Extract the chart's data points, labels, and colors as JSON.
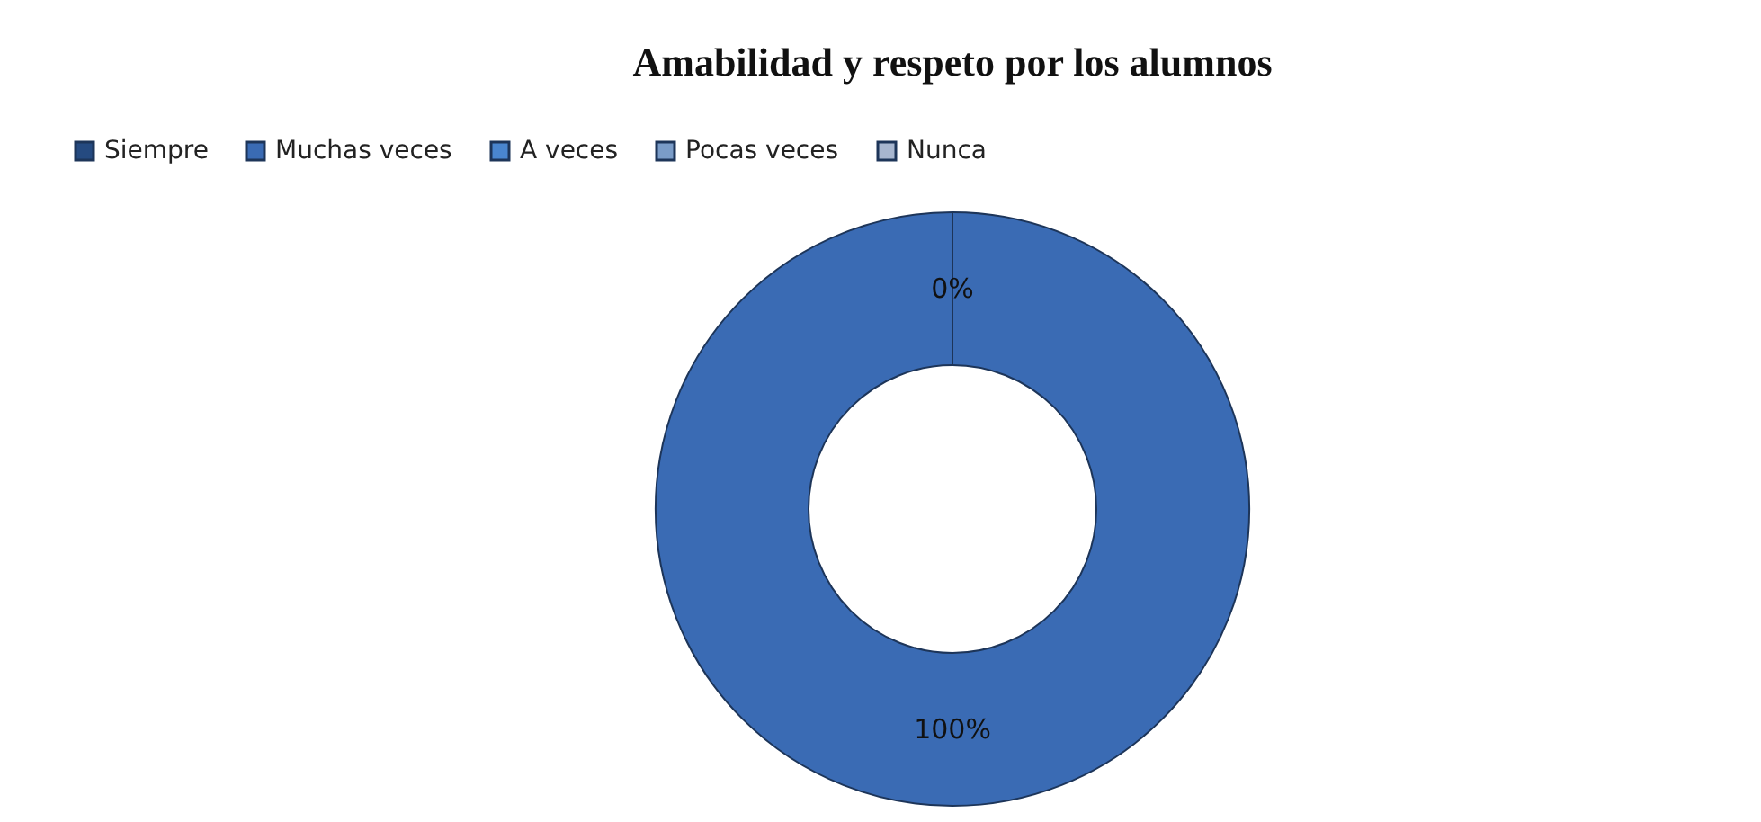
{
  "chart_data": {
    "type": "donut",
    "title": "Amabilidad y respeto por los alumnos",
    "categories": [
      "Siempre",
      "Muchas veces",
      "A veces",
      "Pocas veces",
      "Nunca"
    ],
    "values": [
      0,
      100,
      0,
      0,
      0
    ],
    "colors": [
      "#254a80",
      "#3a6bb4",
      "#4a86cf",
      "#7a9cc8",
      "#a7b6cf"
    ],
    "value_labels": [
      "0%",
      "100%",
      null,
      null,
      null
    ],
    "legend": "top"
  }
}
